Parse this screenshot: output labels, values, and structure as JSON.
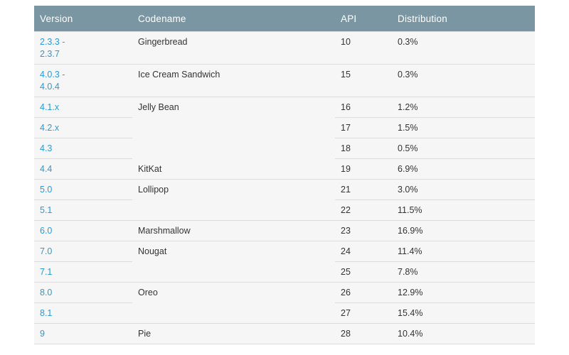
{
  "table": {
    "headers": [
      "Version",
      "Codename",
      "API",
      "Distribution"
    ],
    "rows": [
      {
        "version": "2.3.3 -\n2.3.7",
        "codename": "Gingerbread",
        "api": "10",
        "distribution": "0.3%"
      },
      {
        "version": "4.0.3 -\n4.0.4",
        "codename": "Ice Cream Sandwich",
        "api": "15",
        "distribution": "0.3%"
      },
      {
        "version": "4.1.x",
        "codename": "Jelly Bean",
        "api": "16",
        "distribution": "1.2%"
      },
      {
        "version": "4.2.x",
        "codename": "",
        "api": "17",
        "distribution": "1.5%"
      },
      {
        "version": "4.3",
        "codename": "",
        "api": "18",
        "distribution": "0.5%"
      },
      {
        "version": "4.4",
        "codename": "KitKat",
        "api": "19",
        "distribution": "6.9%"
      },
      {
        "version": "5.0",
        "codename": "Lollipop",
        "api": "21",
        "distribution": "3.0%"
      },
      {
        "version": "5.1",
        "codename": "",
        "api": "22",
        "distribution": "11.5%"
      },
      {
        "version": "6.0",
        "codename": "Marshmallow",
        "api": "23",
        "distribution": "16.9%"
      },
      {
        "version": "7.0",
        "codename": "Nougat",
        "api": "24",
        "distribution": "11.4%"
      },
      {
        "version": "7.1",
        "codename": "",
        "api": "25",
        "distribution": "7.8%"
      },
      {
        "version": "8.0",
        "codename": "Oreo",
        "api": "26",
        "distribution": "12.9%"
      },
      {
        "version": "8.1",
        "codename": "",
        "api": "27",
        "distribution": "15.4%"
      },
      {
        "version": "9",
        "codename": "Pie",
        "api": "28",
        "distribution": "10.4%"
      }
    ]
  }
}
